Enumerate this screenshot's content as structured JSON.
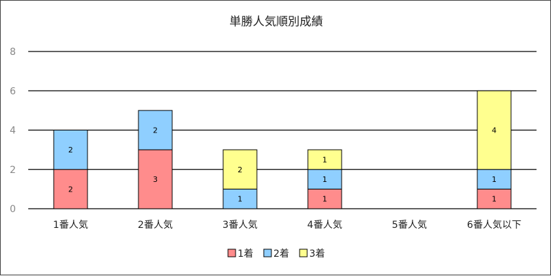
{
  "chart_data": {
    "type": "bar",
    "stacked": true,
    "title": "単勝人気順別成績",
    "categories": [
      "1番人気",
      "2番人気",
      "3番人気",
      "4番人気",
      "5番人気",
      "6番人気以下"
    ],
    "series": [
      {
        "name": "1着",
        "color": "#ff8c8c",
        "values": [
          2,
          3,
          0,
          1,
          0,
          1
        ]
      },
      {
        "name": "2着",
        "color": "#8fcfff",
        "values": [
          2,
          2,
          1,
          1,
          0,
          1
        ]
      },
      {
        "name": "3着",
        "color": "#ffff8f",
        "values": [
          0,
          0,
          2,
          1,
          0,
          4
        ]
      }
    ],
    "ylim": [
      0,
      8
    ],
    "yticks": [
      0,
      2,
      4,
      6,
      8
    ],
    "grid": true,
    "legend_position": "bottom"
  }
}
